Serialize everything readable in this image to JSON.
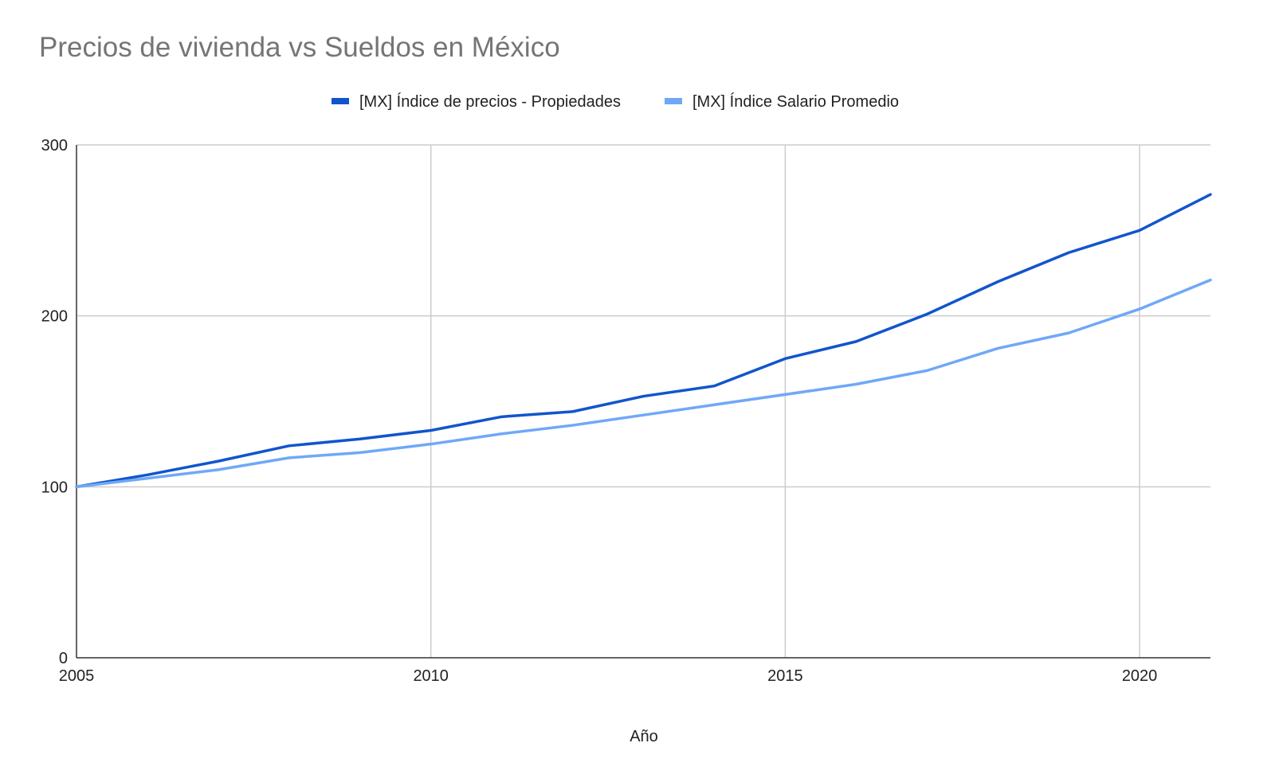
{
  "chart_data": {
    "type": "line",
    "title": "Precios de vivienda vs Sueldos en México",
    "xlabel": "Año",
    "ylabel": "",
    "xlim": [
      2005,
      2021
    ],
    "ylim": [
      0,
      300
    ],
    "x_ticks": [
      2005,
      2010,
      2015,
      2020
    ],
    "y_ticks": [
      0,
      100,
      200,
      300
    ],
    "grid": true,
    "legend_position": "top-center",
    "x": [
      2005,
      2006,
      2007,
      2008,
      2009,
      2010,
      2011,
      2012,
      2013,
      2014,
      2015,
      2016,
      2017,
      2018,
      2019,
      2020,
      2021
    ],
    "series": [
      {
        "name": "[MX] Índice de precios - Propiedades",
        "color": "#1155cc",
        "values": [
          100,
          107,
          115,
          124,
          128,
          133,
          141,
          144,
          153,
          159,
          175,
          185,
          201,
          220,
          237,
          250,
          271
        ]
      },
      {
        "name": "[MX] Índice Salario Promedio",
        "color": "#6fa8f7",
        "values": [
          100,
          105,
          110,
          117,
          120,
          125,
          131,
          136,
          142,
          148,
          154,
          160,
          168,
          181,
          190,
          204,
          221
        ]
      }
    ]
  }
}
